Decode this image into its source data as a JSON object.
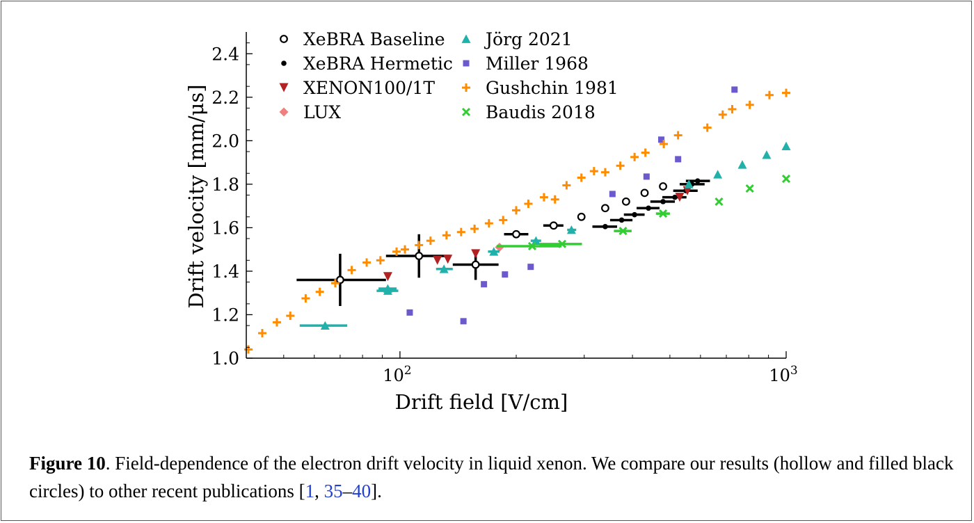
{
  "chart_data": {
    "type": "scatter",
    "xlabel": "Drift field [V/cm]",
    "ylabel": "Drift velocity [mm/μs]",
    "xscale": "log",
    "xlim": [
      40,
      1000
    ],
    "ylim": [
      1.0,
      2.5
    ],
    "xticks": [
      {
        "value": 100,
        "base": "10",
        "exp": "2"
      },
      {
        "value": 1000,
        "base": "10",
        "exp": "3"
      }
    ],
    "yticks": [
      "1.0",
      "1.2",
      "1.4",
      "1.6",
      "1.8",
      "2.0",
      "2.2",
      "2.4"
    ],
    "legend_position": "top-left",
    "series": [
      {
        "name": "XeBRA Baseline",
        "marker": "open-circle",
        "color": "#000000",
        "points": [
          {
            "x": 70,
            "y": 1.36,
            "xerr": [
              54,
              92
            ],
            "yerr": [
              1.24,
              1.48
            ]
          },
          {
            "x": 112,
            "y": 1.47,
            "xerr": [
              92,
              135
            ],
            "yerr": [
              1.37,
              1.57
            ]
          },
          {
            "x": 157,
            "y": 1.43,
            "xerr": [
              137,
              180
            ],
            "yerr": [
              1.36,
              1.5
            ]
          },
          {
            "x": 200,
            "y": 1.57,
            "xerr": [
              186,
              215
            ],
            "yerr": [
              1.57,
              1.57
            ]
          },
          {
            "x": 250,
            "y": 1.61,
            "xerr": [
              235,
              265
            ],
            "yerr": [
              1.61,
              1.61
            ]
          },
          {
            "x": 295,
            "y": 1.65,
            "xerr": [
              295,
              295
            ],
            "yerr": [
              1.65,
              1.65
            ]
          },
          {
            "x": 340,
            "y": 1.69,
            "xerr": [
              340,
              340
            ],
            "yerr": [
              1.69,
              1.69
            ]
          },
          {
            "x": 385,
            "y": 1.72,
            "xerr": [
              385,
              385
            ],
            "yerr": [
              1.72,
              1.72
            ]
          },
          {
            "x": 430,
            "y": 1.76,
            "xerr": [
              430,
              430
            ],
            "yerr": [
              1.76,
              1.76
            ]
          },
          {
            "x": 480,
            "y": 1.79,
            "xerr": [
              480,
              480
            ],
            "yerr": [
              1.79,
              1.79
            ]
          }
        ]
      },
      {
        "name": "XeBRA Hermetic",
        "marker": "filled-circle",
        "color": "#000000",
        "points": [
          {
            "x": 340,
            "y": 1.605,
            "xerr": [
              315,
              365
            ]
          },
          {
            "x": 375,
            "y": 1.635,
            "xerr": [
              350,
              400
            ]
          },
          {
            "x": 405,
            "y": 1.66,
            "xerr": [
              380,
              430
            ]
          },
          {
            "x": 440,
            "y": 1.69,
            "xerr": [
              410,
              470
            ]
          },
          {
            "x": 480,
            "y": 1.72,
            "xerr": [
              445,
              515
            ]
          },
          {
            "x": 515,
            "y": 1.74,
            "xerr": [
              478,
              552
            ]
          },
          {
            "x": 550,
            "y": 1.77,
            "xerr": [
              510,
              590
            ]
          },
          {
            "x": 570,
            "y": 1.8,
            "xerr": [
              530,
              615
            ]
          },
          {
            "x": 590,
            "y": 1.815,
            "xerr": [
              550,
              635
            ]
          }
        ]
      },
      {
        "name": "XENON100/1T",
        "marker": "down-triangle",
        "color": "#b22222",
        "points": [
          {
            "x": 93,
            "y": 1.375
          },
          {
            "x": 125,
            "y": 1.45
          },
          {
            "x": 133,
            "y": 1.455
          },
          {
            "x": 157,
            "y": 1.48
          },
          {
            "x": 530,
            "y": 1.74
          },
          {
            "x": 555,
            "y": 1.77
          }
        ]
      },
      {
        "name": "LUX",
        "marker": "diamond",
        "color": "#f08080",
        "points": [
          {
            "x": 181,
            "y": 1.51
          }
        ]
      },
      {
        "name": "Jörg 2021",
        "marker": "up-triangle",
        "color": "#20b2aa",
        "points": [
          {
            "x": 64,
            "y": 1.15,
            "xerr": [
              55,
              73
            ]
          },
          {
            "x": 93,
            "y": 1.31,
            "xerr": [
              87,
              99
            ]
          },
          {
            "x": 93,
            "y": 1.32,
            "xerr": [
              88,
              98
            ]
          },
          {
            "x": 130,
            "y": 1.41,
            "xerr": [
              124,
              137
            ]
          },
          {
            "x": 175,
            "y": 1.49,
            "xerr": [
              169,
              181
            ]
          },
          {
            "x": 225,
            "y": 1.54,
            "xerr": [
              218,
              232
            ]
          },
          {
            "x": 278,
            "y": 1.59,
            "xerr": [
              271,
              286
            ]
          },
          {
            "x": 560,
            "y": 1.8
          },
          {
            "x": 665,
            "y": 1.845
          },
          {
            "x": 770,
            "y": 1.89
          },
          {
            "x": 890,
            "y": 1.935
          },
          {
            "x": 1000,
            "y": 1.975
          }
        ]
      },
      {
        "name": "Miller 1968",
        "marker": "square",
        "color": "#6a5acd",
        "points": [
          {
            "x": 106,
            "y": 1.21
          },
          {
            "x": 146,
            "y": 1.17
          },
          {
            "x": 165,
            "y": 1.34
          },
          {
            "x": 187,
            "y": 1.385
          },
          {
            "x": 218,
            "y": 1.42
          },
          {
            "x": 355,
            "y": 1.755
          },
          {
            "x": 435,
            "y": 1.835
          },
          {
            "x": 475,
            "y": 2.005
          },
          {
            "x": 525,
            "y": 1.915
          },
          {
            "x": 735,
            "y": 2.235
          }
        ]
      },
      {
        "name": "Gushchin 1981",
        "marker": "plus",
        "color": "#ff8c00",
        "points": [
          {
            "x": 40.5,
            "y": 1.04
          },
          {
            "x": 44,
            "y": 1.115
          },
          {
            "x": 48,
            "y": 1.165
          },
          {
            "x": 52,
            "y": 1.195
          },
          {
            "x": 57,
            "y": 1.275
          },
          {
            "x": 62,
            "y": 1.305
          },
          {
            "x": 68,
            "y": 1.345
          },
          {
            "x": 75,
            "y": 1.405
          },
          {
            "x": 82,
            "y": 1.44
          },
          {
            "x": 89,
            "y": 1.45
          },
          {
            "x": 98,
            "y": 1.49
          },
          {
            "x": 103,
            "y": 1.5
          },
          {
            "x": 112,
            "y": 1.52
          },
          {
            "x": 120,
            "y": 1.54
          },
          {
            "x": 132,
            "y": 1.565
          },
          {
            "x": 144,
            "y": 1.58
          },
          {
            "x": 156,
            "y": 1.595
          },
          {
            "x": 170,
            "y": 1.62
          },
          {
            "x": 185,
            "y": 1.635
          },
          {
            "x": 200,
            "y": 1.68
          },
          {
            "x": 215,
            "y": 1.71
          },
          {
            "x": 236,
            "y": 1.74
          },
          {
            "x": 252,
            "y": 1.73
          },
          {
            "x": 270,
            "y": 1.795
          },
          {
            "x": 295,
            "y": 1.83
          },
          {
            "x": 318,
            "y": 1.86
          },
          {
            "x": 340,
            "y": 1.855
          },
          {
            "x": 372,
            "y": 1.885
          },
          {
            "x": 405,
            "y": 1.925
          },
          {
            "x": 432,
            "y": 1.945
          },
          {
            "x": 482,
            "y": 1.985
          },
          {
            "x": 525,
            "y": 2.025
          },
          {
            "x": 625,
            "y": 2.06
          },
          {
            "x": 685,
            "y": 2.12
          },
          {
            "x": 725,
            "y": 2.145
          },
          {
            "x": 805,
            "y": 2.165
          },
          {
            "x": 905,
            "y": 2.21
          },
          {
            "x": 1000,
            "y": 2.22
          }
        ]
      },
      {
        "name": "Baudis 2018",
        "marker": "x",
        "color": "#32cd32",
        "points": [
          {
            "x": 220,
            "y": 1.515,
            "xerr": [
              178,
              262
            ]
          },
          {
            "x": 263,
            "y": 1.525,
            "xerr": [
              230,
              296
            ]
          },
          {
            "x": 378,
            "y": 1.585,
            "xerr": [
              358,
              398
            ]
          },
          {
            "x": 480,
            "y": 1.665,
            "xerr": [
              460,
              500
            ]
          },
          {
            "x": 670,
            "y": 1.72
          },
          {
            "x": 805,
            "y": 1.78
          },
          {
            "x": 1000,
            "y": 1.825
          }
        ]
      }
    ]
  },
  "caption": {
    "label": "Figure 10",
    "text": ".  Field-dependence of the electron drift velocity in liquid xenon.  We compare our results (hollow and filled black circles) to other recent publications [",
    "ref1": "1",
    "sep": ", ",
    "ref2": "35",
    "dash": "–",
    "ref3": "40",
    "end": "]."
  }
}
